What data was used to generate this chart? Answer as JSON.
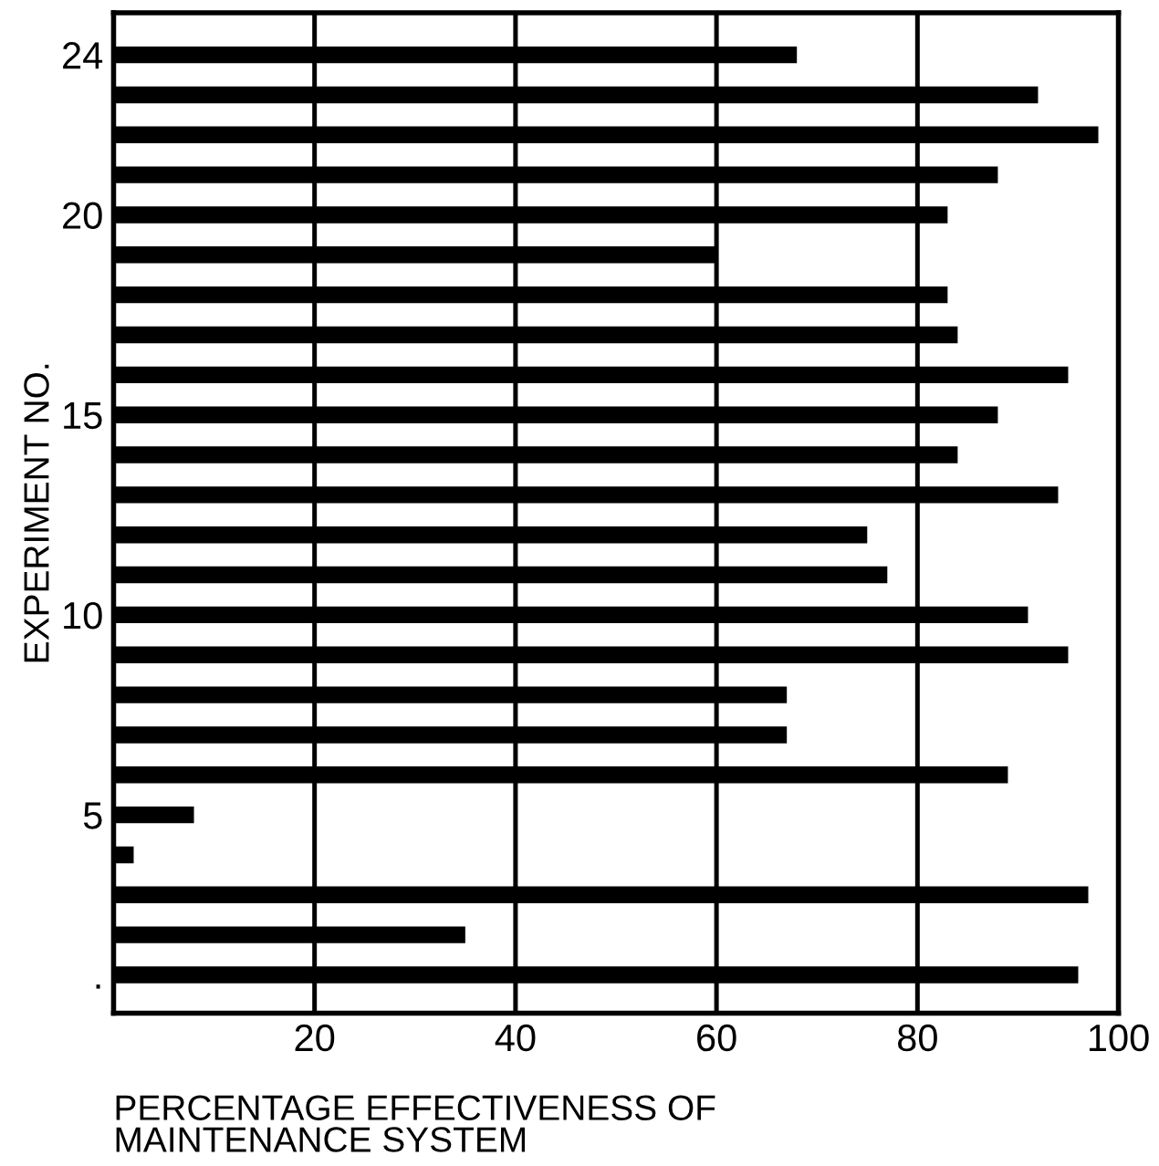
{
  "chart_data": {
    "type": "bar",
    "orientation": "horizontal",
    "xlabel": "PERCENTAGE EFFECTIVENESS OF\nMAINTENANCE SYSTEM",
    "ylabel": "EXPERIMENT NO.",
    "categories": [
      "24",
      null,
      null,
      null,
      "20",
      null,
      null,
      null,
      null,
      "15",
      null,
      null,
      null,
      null,
      "10",
      null,
      null,
      null,
      null,
      "5",
      null,
      null,
      null,
      "."
    ],
    "values": [
      68,
      92,
      98,
      88,
      83,
      60,
      83,
      84,
      95,
      88,
      84,
      94,
      75,
      77,
      91,
      95,
      67,
      67,
      89,
      8,
      2,
      97,
      35,
      96
    ],
    "color": "#000000",
    "xlim": [
      0,
      100
    ],
    "xticks": [
      20,
      40,
      60,
      80,
      100
    ],
    "grid": "x"
  }
}
